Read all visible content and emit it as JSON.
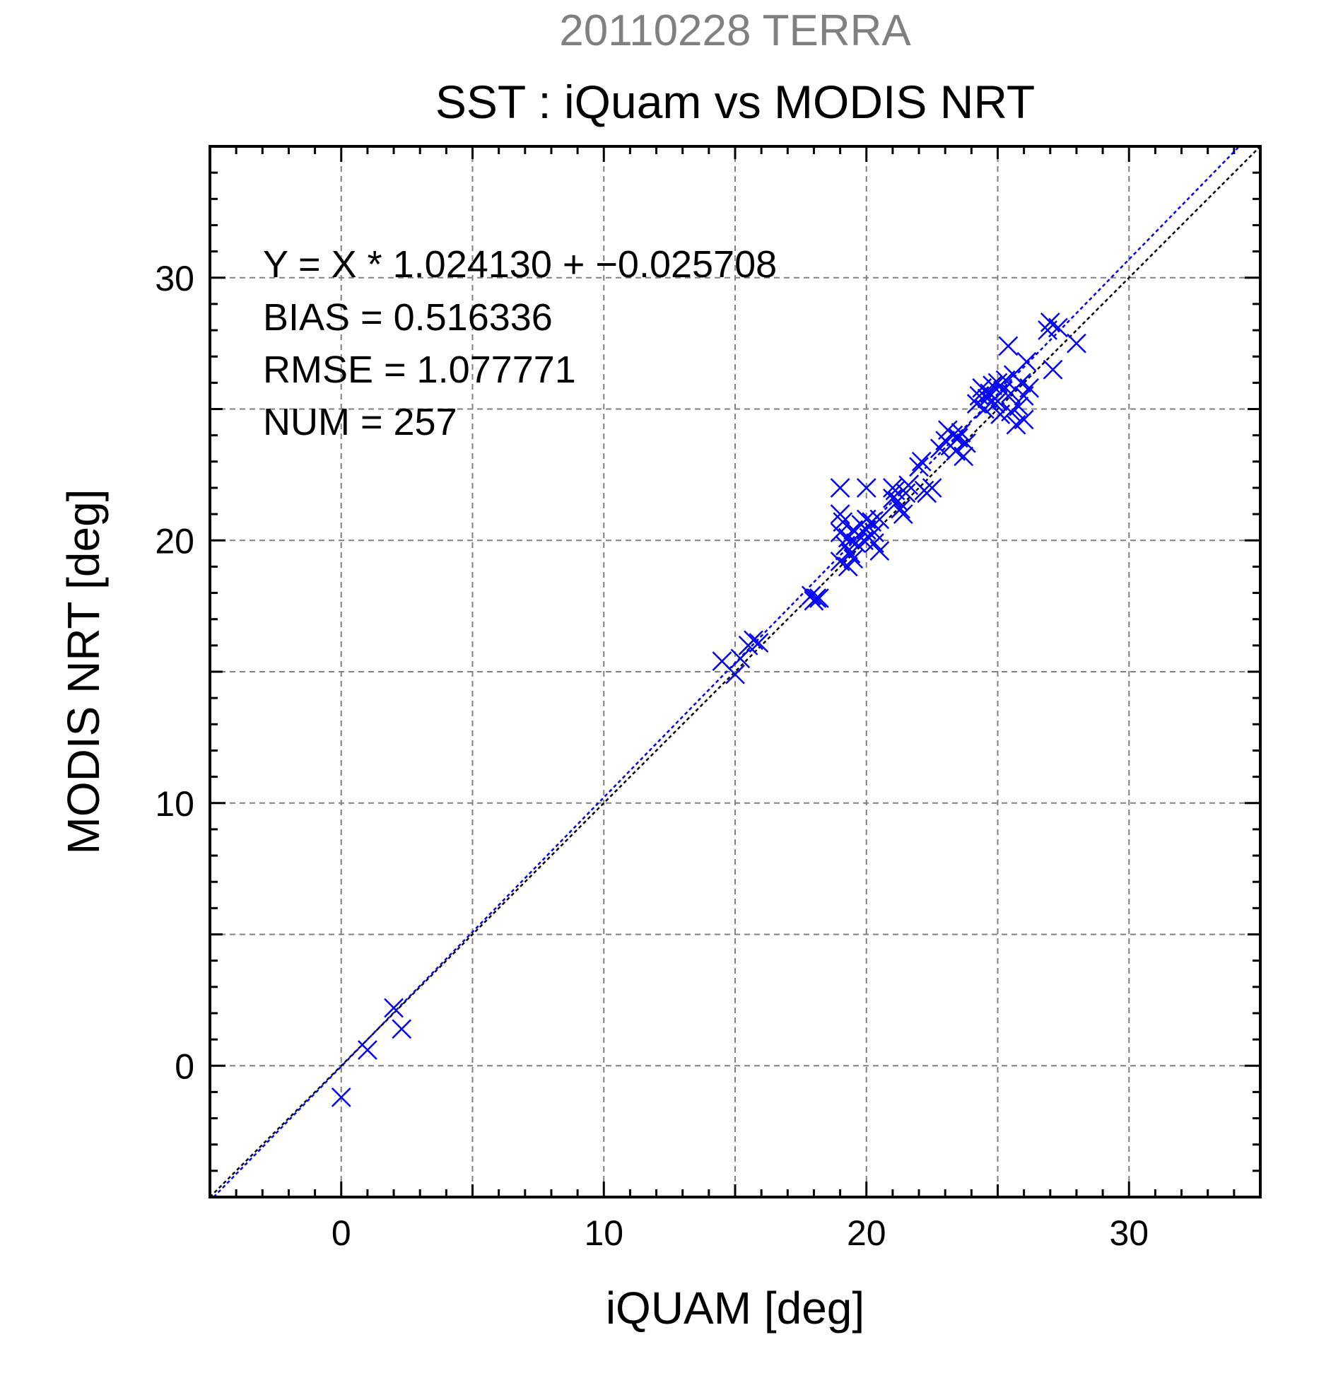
{
  "header": {
    "supertitle": "20110228 TERRA",
    "title": "SST : iQuam vs MODIS NRT"
  },
  "stats": {
    "regression": "Y = X * 1.024130 + −0.025708",
    "bias": "BIAS = 0.516336",
    "rmse": "RMSE = 1.077771",
    "num": "NUM = 257"
  },
  "chart_data": {
    "type": "scatter",
    "title": "SST : iQuam vs MODIS NRT",
    "xlabel": "iQUAM [deg]",
    "ylabel": "MODIS NRT [deg]",
    "xlim": [
      -5,
      35
    ],
    "ylim": [
      -5,
      35
    ],
    "major_ticks": [
      0,
      10,
      20,
      30
    ],
    "minor_ticks_step": 1,
    "grid": true,
    "grid_step": 5,
    "marker": "x",
    "marker_color": "#0000ff",
    "reference_lines": [
      {
        "kind": "one-to-one",
        "slope": 1.0,
        "intercept": 0.0,
        "color": "#000000"
      },
      {
        "kind": "regression",
        "slope": 1.02413,
        "intercept": -0.025708,
        "color": "#0000ff"
      }
    ],
    "points": [
      [
        0.0,
        -1.2
      ],
      [
        1.0,
        0.6
      ],
      [
        2.0,
        2.2
      ],
      [
        2.3,
        1.4
      ],
      [
        14.5,
        15.4
      ],
      [
        15.0,
        14.9
      ],
      [
        15.2,
        15.5
      ],
      [
        15.5,
        16.0
      ],
      [
        15.7,
        16.2
      ],
      [
        15.9,
        16.1
      ],
      [
        17.9,
        17.9
      ],
      [
        18.0,
        17.7
      ],
      [
        18.1,
        17.8
      ],
      [
        18.2,
        17.8
      ],
      [
        19.0,
        22.0
      ],
      [
        19.0,
        21.0
      ],
      [
        19.0,
        20.3
      ],
      [
        19.1,
        20.7
      ],
      [
        19.0,
        19.2
      ],
      [
        19.2,
        19.8
      ],
      [
        19.3,
        19.0
      ],
      [
        19.3,
        20.1
      ],
      [
        19.4,
        19.5
      ],
      [
        19.5,
        20.4
      ],
      [
        19.5,
        19.3
      ],
      [
        19.6,
        19.9
      ],
      [
        19.7,
        20.2
      ],
      [
        19.8,
        20.6
      ],
      [
        19.9,
        20.0
      ],
      [
        20.0,
        22.0
      ],
      [
        20.0,
        20.8
      ],
      [
        20.0,
        20.4
      ],
      [
        20.1,
        20.1
      ],
      [
        20.2,
        20.7
      ],
      [
        20.3,
        20.3
      ],
      [
        20.3,
        19.9
      ],
      [
        20.5,
        19.6
      ],
      [
        20.5,
        20.8
      ],
      [
        21.0,
        22.0
      ],
      [
        21.0,
        21.6
      ],
      [
        21.1,
        21.9
      ],
      [
        21.2,
        21.5
      ],
      [
        21.3,
        21.2
      ],
      [
        21.4,
        21.0
      ],
      [
        21.5,
        21.8
      ],
      [
        21.6,
        22.1
      ],
      [
        22.0,
        22.8
      ],
      [
        22.1,
        23.0
      ],
      [
        22.2,
        21.9
      ],
      [
        22.3,
        21.8
      ],
      [
        22.5,
        22.0
      ],
      [
        22.8,
        23.5
      ],
      [
        23.0,
        23.8
      ],
      [
        23.1,
        24.2
      ],
      [
        23.2,
        23.6
      ],
      [
        23.3,
        24.0
      ],
      [
        23.4,
        23.4
      ],
      [
        23.5,
        23.9
      ],
      [
        23.6,
        24.1
      ],
      [
        23.7,
        23.2
      ],
      [
        23.8,
        23.7
      ],
      [
        24.2,
        25.2
      ],
      [
        24.3,
        25.5
      ],
      [
        24.4,
        25.8
      ],
      [
        24.5,
        25.0
      ],
      [
        24.6,
        25.4
      ],
      [
        24.7,
        25.6
      ],
      [
        24.8,
        25.9
      ],
      [
        24.9,
        25.2
      ],
      [
        25.0,
        26.0
      ],
      [
        25.0,
        25.3
      ],
      [
        25.1,
        24.8
      ],
      [
        25.2,
        25.7
      ],
      [
        25.3,
        26.1
      ],
      [
        25.4,
        27.4
      ],
      [
        25.5,
        25.6
      ],
      [
        25.5,
        24.9
      ],
      [
        25.6,
        26.3
      ],
      [
        25.7,
        24.4
      ],
      [
        25.8,
        25.1
      ],
      [
        25.9,
        26.0
      ],
      [
        26.0,
        25.5
      ],
      [
        26.0,
        24.6
      ],
      [
        26.1,
        26.8
      ],
      [
        26.2,
        25.8
      ],
      [
        26.9,
        28.0
      ],
      [
        27.0,
        28.3
      ],
      [
        27.1,
        26.5
      ],
      [
        27.3,
        28.1
      ],
      [
        28.0,
        27.5
      ]
    ]
  }
}
